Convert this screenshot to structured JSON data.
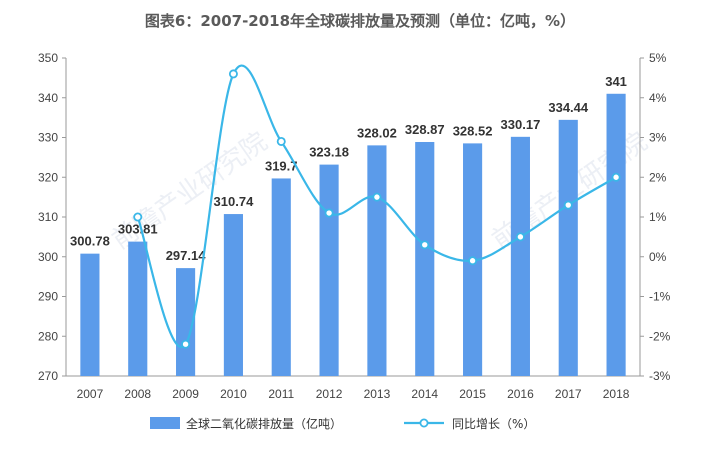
{
  "chart_data": {
    "type": "bar",
    "title": "图表6：2007-2018年全球碳排放量及预测（单位：亿吨，%）",
    "categories": [
      "2007",
      "2008",
      "2009",
      "2010",
      "2011",
      "2012",
      "2013",
      "2014",
      "2015",
      "2016",
      "2017",
      "2018"
    ],
    "series": [
      {
        "name": "全球二氧化碳排放量（亿吨）",
        "type": "bar",
        "axis": "left",
        "color": "#5b9bea",
        "values": [
          300.78,
          303.81,
          297.14,
          310.74,
          319.7,
          323.18,
          328.02,
          328.87,
          328.52,
          330.17,
          334.44,
          341
        ],
        "labels": [
          "300.78",
          "303.81",
          "297.14",
          "310.74",
          "319.7",
          "323.18",
          "328.02",
          "328.87",
          "328.52",
          "330.17",
          "334.44",
          "341"
        ]
      },
      {
        "name": "同比增长（%）",
        "type": "line",
        "axis": "right",
        "color": "#3ab7e8",
        "values": [
          null,
          1.0,
          -2.2,
          4.6,
          2.9,
          1.1,
          1.5,
          0.3,
          -0.1,
          0.5,
          1.3,
          2.0
        ]
      }
    ],
    "y_left": {
      "ylim": [
        270,
        350
      ],
      "ticks": [
        "270",
        "280",
        "290",
        "300",
        "310",
        "320",
        "330",
        "340",
        "350"
      ]
    },
    "y_right": {
      "ylim": [
        -3,
        5
      ],
      "ticks": [
        "-3%",
        "-2%",
        "-1%",
        "0%",
        "1%",
        "2%",
        "3%",
        "4%",
        "5%"
      ]
    },
    "grid": false,
    "legend_position": "bottom"
  },
  "watermark": "前瞻产业研究院"
}
